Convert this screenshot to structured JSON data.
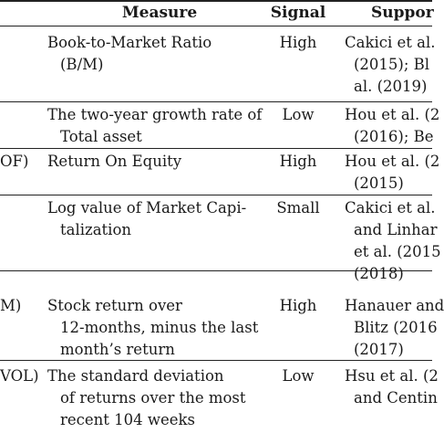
{
  "header": {
    "measure": "Measure",
    "signal": "Signal",
    "support": "Suppor"
  },
  "rows": [
    {
      "code": "",
      "measure": [
        "Book-to-Market Ratio",
        "(B/M)"
      ],
      "signal": "High",
      "support": [
        "Cakici et al.",
        "(2015); Bl",
        "al. (2019)"
      ]
    },
    {
      "code": "",
      "measure": [
        "The two-year growth rate of",
        "Total asset"
      ],
      "signal": "Low",
      "support": [
        "Hou et al. (2",
        "(2016); Be"
      ]
    },
    {
      "code": "OF)",
      "measure": [
        "Return On Equity"
      ],
      "signal": "High",
      "support": [
        "Hou et al. (2",
        "(2015)"
      ]
    },
    {
      "code": "",
      "measure": [
        "Log value of Market Capi-",
        "talization"
      ],
      "signal": "Small",
      "support": [
        "Cakici et al.",
        "and Linhar",
        "et al. (2015",
        "(2018)"
      ]
    },
    {
      "code": "M)",
      "measure": [
        "Stock return over",
        "12-months, minus the last",
        "month’s return"
      ],
      "signal": "High",
      "support": [
        "Hanauer and",
        "Blitz (2016",
        "(2017)"
      ]
    },
    {
      "code": "VOL)",
      "measure": [
        "The standard deviation",
        "of returns over the most",
        "recent 104 weeks"
      ],
      "signal": "Low",
      "support": [
        "Hsu et al. (2",
        "and Centin"
      ]
    }
  ]
}
